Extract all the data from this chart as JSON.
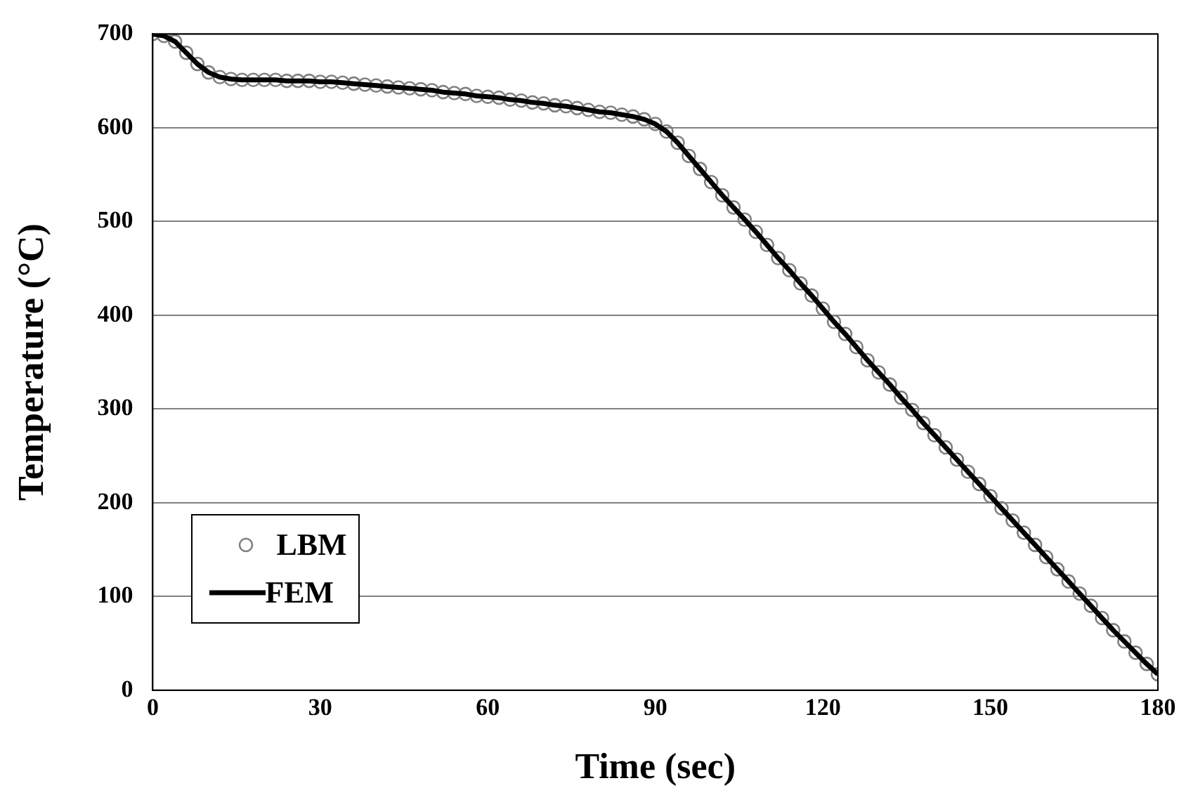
{
  "chart_data": {
    "type": "line",
    "xlabel": "Time (sec)",
    "ylabel": "Temperature (°C)",
    "x": [
      0,
      2,
      4,
      6,
      8,
      10,
      12,
      14,
      16,
      18,
      20,
      22,
      24,
      26,
      28,
      30,
      32,
      34,
      36,
      38,
      40,
      42,
      44,
      46,
      48,
      50,
      52,
      54,
      56,
      58,
      60,
      62,
      64,
      66,
      68,
      70,
      72,
      74,
      76,
      78,
      80,
      82,
      84,
      86,
      88,
      90,
      92,
      94,
      96,
      98,
      100,
      102,
      104,
      106,
      108,
      110,
      112,
      114,
      116,
      118,
      120,
      122,
      124,
      126,
      128,
      130,
      132,
      134,
      136,
      138,
      140,
      142,
      144,
      146,
      148,
      150,
      152,
      154,
      156,
      158,
      160,
      162,
      164,
      166,
      168,
      170,
      172,
      174,
      176,
      178,
      180
    ],
    "series": [
      {
        "name": "LBM",
        "type": "scatter",
        "marker": "circle",
        "color": "#808080",
        "values": [
          700,
          698,
          692,
          680,
          668,
          659,
          654,
          652,
          651,
          651,
          651,
          651,
          650,
          650,
          650,
          649,
          649,
          648,
          647,
          646,
          645,
          644,
          643,
          642,
          641,
          640,
          638,
          637,
          636,
          634,
          633,
          632,
          630,
          629,
          627,
          626,
          624,
          623,
          621,
          619,
          617,
          616,
          614,
          612,
          609,
          604,
          596,
          584,
          570,
          556,
          542,
          528,
          515,
          502,
          489,
          475,
          461,
          448,
          434,
          421,
          407,
          393,
          380,
          366,
          352,
          339,
          326,
          312,
          299,
          285,
          272,
          259,
          246,
          233,
          220,
          207,
          194,
          181,
          168,
          155,
          142,
          129,
          116,
          103,
          90,
          77,
          64,
          52,
          40,
          28,
          17
        ]
      },
      {
        "name": "FEM",
        "type": "line",
        "marker": "none",
        "line_style": "solid",
        "color": "#000000",
        "values": [
          700,
          698,
          692,
          680,
          668,
          659,
          654,
          652,
          651,
          651,
          651,
          651,
          650,
          650,
          650,
          649,
          649,
          648,
          647,
          646,
          645,
          644,
          643,
          642,
          641,
          640,
          638,
          637,
          636,
          634,
          633,
          632,
          630,
          629,
          627,
          626,
          624,
          623,
          621,
          619,
          617,
          616,
          614,
          612,
          609,
          604,
          596,
          584,
          570,
          556,
          542,
          528,
          515,
          502,
          489,
          475,
          461,
          448,
          434,
          421,
          407,
          393,
          380,
          366,
          352,
          339,
          326,
          312,
          299,
          285,
          272,
          259,
          246,
          233,
          220,
          207,
          194,
          181,
          168,
          155,
          142,
          129,
          116,
          103,
          90,
          77,
          64,
          52,
          40,
          28,
          17
        ]
      }
    ],
    "xlim": [
      0,
      180
    ],
    "xticks": [
      0,
      30,
      60,
      90,
      120,
      150,
      180
    ],
    "ylim": [
      0,
      700
    ],
    "yticks": [
      0,
      100,
      200,
      300,
      400,
      500,
      600,
      700
    ],
    "grid": "y",
    "legend": "bottom left"
  }
}
